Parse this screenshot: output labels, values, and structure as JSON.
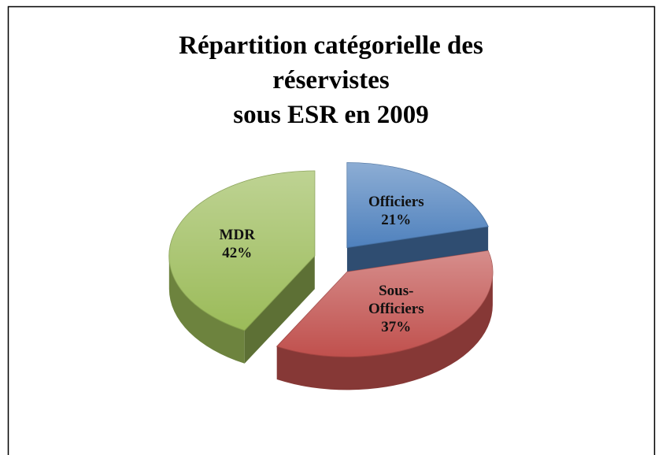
{
  "chart_data": {
    "type": "pie",
    "title": [
      "Répartition catégorielle des",
      "réservistes",
      "sous ESR en 2009"
    ],
    "categories": [
      "Officiers",
      "Sous-Officiers",
      "MDR"
    ],
    "values": [
      21,
      37,
      42
    ],
    "value_labels": [
      "21%",
      "37%",
      "42%"
    ],
    "colors": [
      "#4f81bd",
      "#c0504d",
      "#9bbb59"
    ]
  }
}
